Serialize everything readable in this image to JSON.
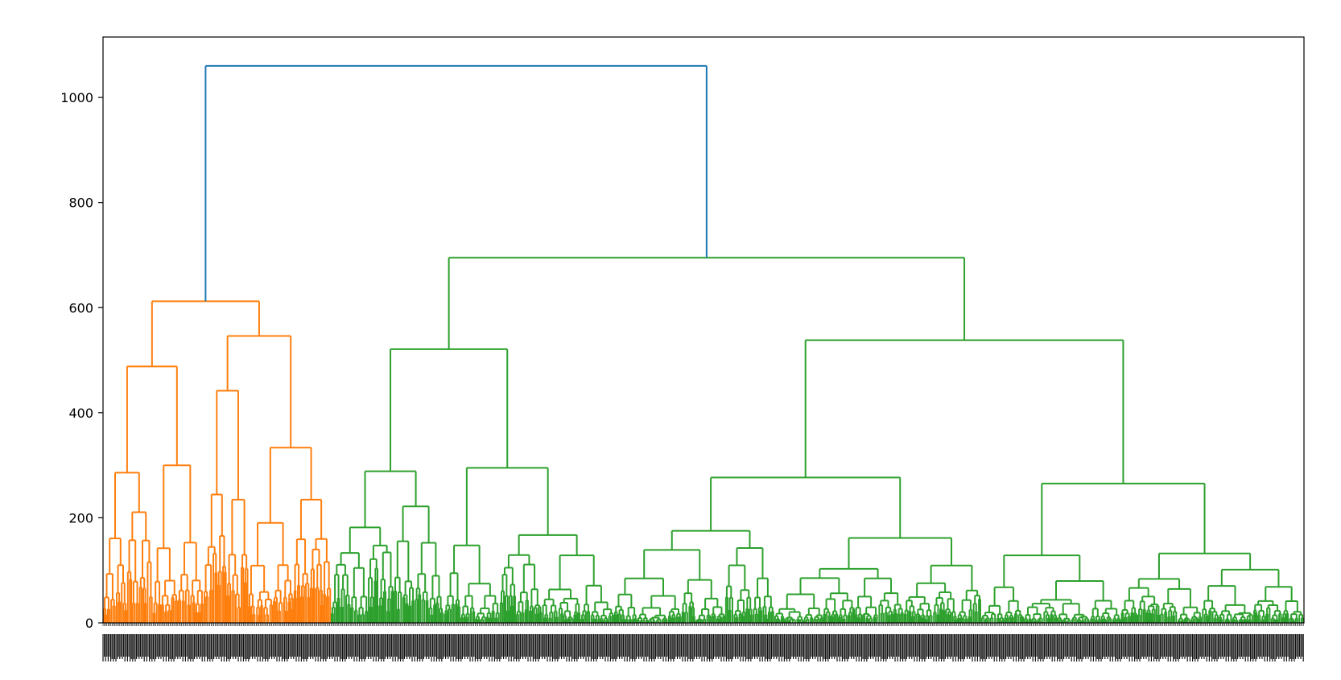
{
  "chart_data": {
    "type": "dendrogram",
    "title": "",
    "xlabel": "",
    "ylabel": "",
    "ylim": [
      0,
      1115
    ],
    "yticks": [
      0,
      200,
      400,
      600,
      800,
      1000
    ],
    "grid": false,
    "legend": "none",
    "colors": {
      "root": "#1f77b4",
      "cluster_a": "#ff7f0e",
      "cluster_b": "#2ca02c",
      "axis": "#000000"
    },
    "x_leaf_labels": "dense unreadable leaf indices along x-axis",
    "root_merge_height": 1060,
    "clusters": [
      {
        "name": "cluster_a",
        "merge_height": 612,
        "leaf_share": 0.19,
        "sub_merges": [
          488,
          546,
          370,
          490,
          428,
          335,
          390
        ]
      },
      {
        "name": "cluster_b",
        "merge_height": 695,
        "leaf_share": 0.81,
        "sub_merges": [
          521,
          538,
          433,
          455,
          428,
          505,
          390,
          372,
          380,
          340
        ]
      }
    ]
  }
}
